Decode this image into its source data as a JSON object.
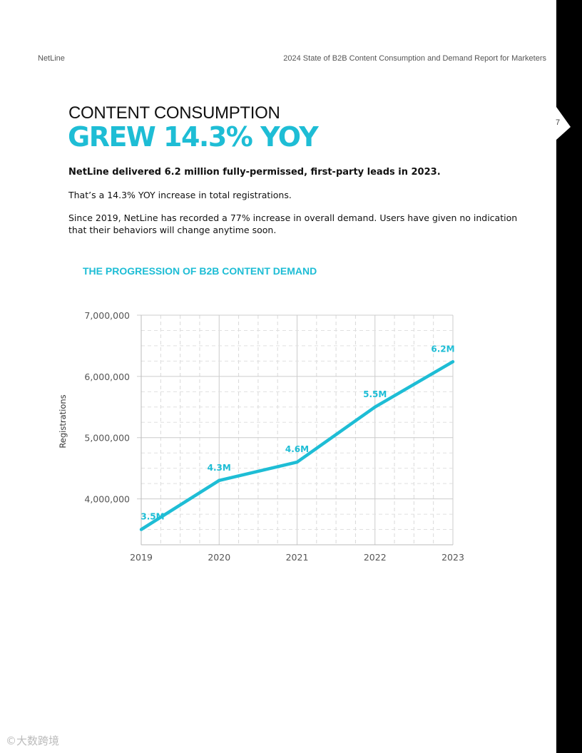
{
  "header": {
    "brand": "NetLine",
    "report_title": "2024 State of B2B Content Consumption and Demand Report for Marketers",
    "page_number": "7"
  },
  "section": {
    "title": "CONTENT CONSUMPTION",
    "headline": "GREW 14.3% YOY"
  },
  "body": {
    "lead": "NetLine delivered 6.2 million fully-permissed, first-party leads in 2023.",
    "paragraph_1": "That’s a 14.3% YOY increase in total registrations.",
    "paragraph_2": "Since 2019, NetLine has recorded a 77% increase in overall demand. Users have given no indication that their behaviors will change anytime soon."
  },
  "chart_data": {
    "type": "line",
    "title": "THE PROGRESSION OF B2B CONTENT DEMAND",
    "xlabel": "",
    "ylabel": "Registrations",
    "x": [
      "2019",
      "2020",
      "2021",
      "2022",
      "2023"
    ],
    "series": [
      {
        "values": [
          3500000,
          4300000,
          4600000,
          5500000,
          6240000
        ]
      }
    ],
    "data_labels": [
      "3.5M",
      "4.3M",
      "4.6M",
      "5.5M",
      "6.2M"
    ],
    "y_ticks": [
      4000000,
      5000000,
      6000000,
      7000000
    ],
    "y_tick_labels": [
      "4,000,000",
      "5,000,000",
      "6,000,000",
      "7,000,000"
    ],
    "ylim": [
      3250000,
      7000000
    ],
    "grid": true,
    "line_color": "#1ebdd5"
  },
  "watermark": "©大数跨境",
  "colors": {
    "accent": "#1ebdd5",
    "side_tab": "#000000"
  }
}
